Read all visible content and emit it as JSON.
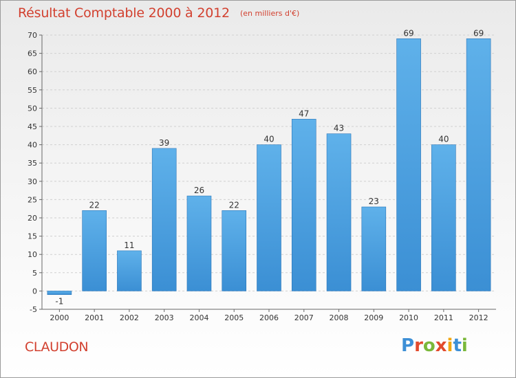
{
  "header": {
    "title": "Résultat Comptable 2000 à 2012",
    "subtitle": "(en milliers d'€)"
  },
  "footer": {
    "town": "CLAUDON",
    "logo": {
      "letters": [
        "P",
        "r",
        "o",
        "x",
        "i",
        "t",
        "i"
      ],
      "colors": [
        "#3d8fd6",
        "#e24a2c",
        "#7ab83a",
        "#e24a2c",
        "#f2a712",
        "#3d8fd6",
        "#7ab83a"
      ]
    }
  },
  "chart_data": {
    "type": "bar",
    "categories": [
      "2000",
      "2001",
      "2002",
      "2003",
      "2004",
      "2005",
      "2006",
      "2007",
      "2008",
      "2009",
      "2010",
      "2011",
      "2012"
    ],
    "values": [
      -1,
      22,
      11,
      39,
      26,
      22,
      40,
      47,
      43,
      23,
      69,
      40,
      69
    ],
    "data_labels": [
      "-1",
      "22",
      "11",
      "39",
      "26",
      "22",
      "40",
      "47",
      "43",
      "23",
      "69",
      "40",
      "69"
    ],
    "ylim": [
      -5,
      70
    ],
    "yticks": [
      -5,
      0,
      5,
      10,
      15,
      20,
      25,
      30,
      35,
      40,
      45,
      50,
      55,
      60,
      65,
      70
    ],
    "grid": true,
    "bar_color": "#3b8fd4",
    "bar_color_light": "#5fb1ea"
  }
}
